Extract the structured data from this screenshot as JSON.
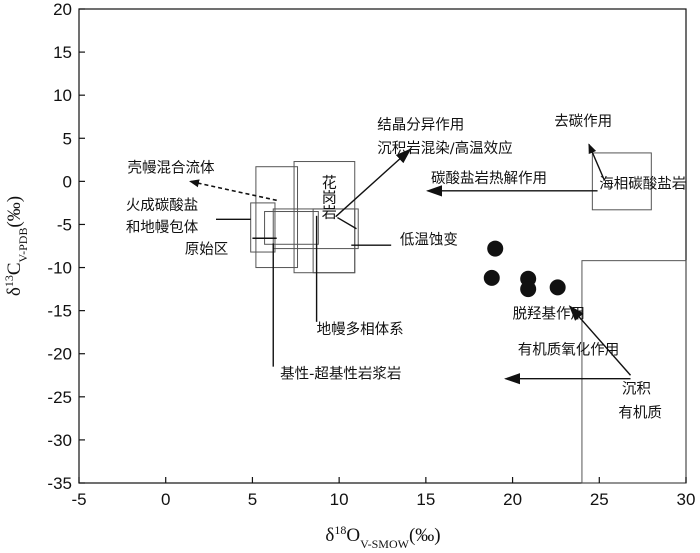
{
  "chart_data": {
    "type": "scatter",
    "title": "",
    "xlabel": {
      "main": "δ",
      "sup": "18",
      "sym": "O",
      "sub": "V-SMOW",
      "unit": "(‰)"
    },
    "ylabel": {
      "main": "δ",
      "sup": "13",
      "sym": "C",
      "sub": "V-PDB",
      "unit": "(‰)"
    },
    "xlim": [
      -5,
      30
    ],
    "ylim": [
      -35,
      20
    ],
    "xticks": [
      -5,
      0,
      5,
      10,
      15,
      20,
      25,
      30
    ],
    "yticks": [
      -35,
      -30,
      -25,
      -20,
      -15,
      -10,
      -5,
      0,
      5,
      10,
      15,
      20
    ],
    "grid": false,
    "points": [
      {
        "x": 19.0,
        "y": -7.8
      },
      {
        "x": 18.8,
        "y": -11.2
      },
      {
        "x": 20.9,
        "y": -11.3
      },
      {
        "x": 20.9,
        "y": -12.5
      },
      {
        "x": 22.6,
        "y": -12.3
      }
    ],
    "regions": [
      {
        "x0": 5.2,
        "x1": 7.6,
        "y0": -10.0,
        "y1": 1.7
      },
      {
        "x0": 4.9,
        "x1": 6.3,
        "y0": -8.2,
        "y1": -2.5
      },
      {
        "x0": 5.7,
        "x1": 8.8,
        "y0": -7.3,
        "y1": -3.5
      },
      {
        "x0": 6.2,
        "x1": 11.1,
        "y0": -7.8,
        "y1": -3.2
      },
      {
        "x0": 8.5,
        "x1": 10.9,
        "y0": -10.6,
        "y1": -3.2
      },
      {
        "x0": 7.4,
        "x1": 10.9,
        "y0": -10.6,
        "y1": 2.3
      },
      {
        "x0": 24.6,
        "x1": 28.0,
        "y0": -3.3,
        "y1": 3.3
      },
      {
        "x0": 24.0,
        "x1": 30.0,
        "y0": -35.0,
        "y1": -9.2
      }
    ],
    "annotations": [
      {
        "text": "壳幔混合流体",
        "x": -2.2,
        "y": 1.0
      },
      {
        "text": "火成碳酸盐",
        "x": -2.3,
        "y": -3.3
      },
      {
        "text": "和地幔包体",
        "x": -2.3,
        "y": -5.9
      },
      {
        "text": "原始区",
        "x": 1.1,
        "y": -8.4
      },
      {
        "text": "结晶分异作用",
        "x": 12.2,
        "y": 6.0
      },
      {
        "text": "沉积岩混染/高温效应",
        "x": 12.2,
        "y": 3.3
      },
      {
        "text": "碳酸盐岩热解作用",
        "x": 15.3,
        "y": -0.2
      },
      {
        "text": "去碳作用",
        "x": 22.4,
        "y": 6.4
      },
      {
        "text": "海相碳酸盐岩",
        "x": 25.0,
        "y": -0.8
      },
      {
        "text": "低温蚀变",
        "x": 13.5,
        "y": -7.3
      },
      {
        "text": "地幔多相体系",
        "x": 8.7,
        "y": -17.7
      },
      {
        "text": "基性-超基性岩浆岩",
        "x": 6.6,
        "y": -22.9
      },
      {
        "text": "脱羟基作用",
        "x": 20.0,
        "y": -15.9
      },
      {
        "text": "有机质氧化作用",
        "x": 20.3,
        "y": -20.1
      },
      {
        "text": "沉积",
        "x": 26.3,
        "y": -24.6
      },
      {
        "text": "有机质",
        "x": 26.1,
        "y": -27.4
      }
    ],
    "vertical_annotations": [
      {
        "text": "花岗岩",
        "x": 9.4,
        "y": 0.8
      }
    ],
    "lines": [
      {
        "x0": 6.4,
        "x1": 1.4,
        "y0": -2.2,
        "y1": 0.0,
        "dashed": true,
        "arrow": true
      },
      {
        "x0": 4.9,
        "x1": 2.9,
        "y0": -4.4,
        "y1": -4.4,
        "dashed": false,
        "arrow": false
      },
      {
        "x0": 6.4,
        "x1": 5.0,
        "y0": -6.6,
        "y1": -6.6,
        "dashed": false,
        "arrow": false
      },
      {
        "x0": 11.0,
        "x1": 9.9,
        "y0": -5.5,
        "y1": -4.2,
        "dashed": false,
        "arrow": false
      },
      {
        "x0": 9.8,
        "x1": 14.1,
        "y0": -4.1,
        "y1": 3.7,
        "dashed": false,
        "arrow": true
      },
      {
        "x0": 24.9,
        "x1": 15.1,
        "y0": -1.1,
        "y1": -1.1,
        "dashed": false,
        "arrow": true
      },
      {
        "x0": 25.3,
        "x1": 24.4,
        "y0": 0.1,
        "y1": 4.3,
        "dashed": false,
        "arrow": true
      },
      {
        "x0": 13.0,
        "x1": 10.7,
        "y0": -7.4,
        "y1": -7.4,
        "dashed": false,
        "arrow": false
      },
      {
        "x0": 8.7,
        "x1": 8.7,
        "y0": -16.3,
        "y1": -4.0,
        "dashed": false,
        "arrow": false
      },
      {
        "x0": 6.2,
        "x1": 6.2,
        "y0": -21.5,
        "y1": -7.2,
        "dashed": false,
        "arrow": false
      },
      {
        "x0": 26.8,
        "x1": 23.3,
        "y0": -22.5,
        "y1": -14.5,
        "dashed": false,
        "arrow": true
      },
      {
        "x0": 26.8,
        "x1": 19.6,
        "y0": -22.9,
        "y1": -22.9,
        "dashed": false,
        "arrow": true
      }
    ]
  }
}
